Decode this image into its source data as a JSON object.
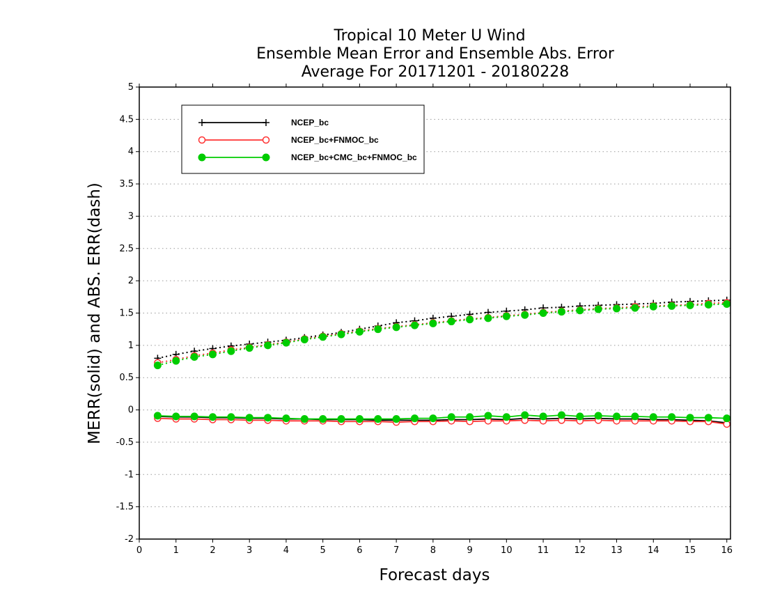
{
  "chart_data": {
    "type": "line",
    "title": [
      "Tropical 10 Meter U Wind",
      "Ensemble Mean Error and Ensemble Abs. Error",
      "Average For 20171201 - 20180228"
    ],
    "xlabel": "Forecast days",
    "ylabel": "MERR(solid) and ABS. ERR(dash)",
    "xlim": [
      0,
      16.1
    ],
    "ylim": [
      -2,
      5
    ],
    "xticks": [
      0,
      1,
      2,
      3,
      4,
      5,
      6,
      7,
      8,
      9,
      10,
      11,
      12,
      13,
      14,
      15,
      16
    ],
    "yticks": [
      -2,
      -1.5,
      -1,
      -0.5,
      0,
      0.5,
      1,
      1.5,
      2,
      2.5,
      3,
      3.5,
      4,
      4.5,
      5
    ],
    "grid": "horizontal dotted",
    "legend_position": "top-left",
    "x": [
      0.5,
      1,
      1.5,
      2,
      2.5,
      3,
      3.5,
      4,
      4.5,
      5,
      5.5,
      6,
      6.5,
      7,
      7.5,
      8,
      8.5,
      9,
      9.5,
      10,
      10.5,
      11,
      11.5,
      12,
      12.5,
      13,
      13.5,
      14,
      14.5,
      15,
      15.5,
      16
    ],
    "series": [
      {
        "name": "NCEP_bc",
        "color": "#000000",
        "marker": "plus",
        "merr": [
          -0.1,
          -0.11,
          -0.11,
          -0.12,
          -0.12,
          -0.13,
          -0.13,
          -0.14,
          -0.14,
          -0.15,
          -0.15,
          -0.15,
          -0.16,
          -0.16,
          -0.16,
          -0.16,
          -0.15,
          -0.15,
          -0.14,
          -0.15,
          -0.13,
          -0.14,
          -0.13,
          -0.14,
          -0.13,
          -0.14,
          -0.14,
          -0.15,
          -0.15,
          -0.16,
          -0.17,
          -0.2
        ],
        "abs_err": [
          0.8,
          0.86,
          0.91,
          0.95,
          0.99,
          1.02,
          1.05,
          1.08,
          1.12,
          1.16,
          1.2,
          1.25,
          1.3,
          1.35,
          1.38,
          1.42,
          1.45,
          1.48,
          1.51,
          1.53,
          1.55,
          1.58,
          1.59,
          1.61,
          1.62,
          1.63,
          1.64,
          1.65,
          1.67,
          1.68,
          1.69,
          1.7
        ]
      },
      {
        "name": "NCEP_bc+FNMOC_bc",
        "color": "#ff3333",
        "marker": "open-circle",
        "merr": [
          -0.13,
          -0.14,
          -0.14,
          -0.15,
          -0.15,
          -0.16,
          -0.16,
          -0.17,
          -0.17,
          -0.17,
          -0.18,
          -0.18,
          -0.18,
          -0.19,
          -0.18,
          -0.18,
          -0.17,
          -0.18,
          -0.17,
          -0.17,
          -0.16,
          -0.17,
          -0.16,
          -0.17,
          -0.16,
          -0.17,
          -0.17,
          -0.17,
          -0.17,
          -0.18,
          -0.18,
          -0.22
        ],
        "abs_err": [
          0.73,
          0.78,
          0.84,
          0.88,
          0.93,
          0.97,
          1.01,
          1.05,
          1.1,
          1.14,
          1.18,
          1.22,
          1.26,
          1.29,
          1.32,
          1.35,
          1.38,
          1.41,
          1.43,
          1.46,
          1.48,
          1.51,
          1.53,
          1.55,
          1.57,
          1.58,
          1.6,
          1.61,
          1.62,
          1.63,
          1.65,
          1.66
        ]
      },
      {
        "name": "NCEP_bc+CMC_bc+FNMOC_bc",
        "color": "#00cc00",
        "marker": "filled-circle",
        "merr": [
          -0.09,
          -0.1,
          -0.1,
          -0.11,
          -0.11,
          -0.12,
          -0.12,
          -0.13,
          -0.14,
          -0.14,
          -0.14,
          -0.14,
          -0.14,
          -0.14,
          -0.13,
          -0.13,
          -0.11,
          -0.11,
          -0.09,
          -0.11,
          -0.08,
          -0.1,
          -0.08,
          -0.1,
          -0.09,
          -0.1,
          -0.1,
          -0.11,
          -0.11,
          -0.12,
          -0.12,
          -0.13
        ],
        "abs_err": [
          0.69,
          0.76,
          0.82,
          0.86,
          0.91,
          0.96,
          1.0,
          1.04,
          1.09,
          1.13,
          1.17,
          1.21,
          1.25,
          1.28,
          1.31,
          1.34,
          1.37,
          1.4,
          1.42,
          1.45,
          1.47,
          1.5,
          1.52,
          1.54,
          1.56,
          1.57,
          1.58,
          1.6,
          1.61,
          1.62,
          1.63,
          1.64
        ]
      }
    ]
  }
}
